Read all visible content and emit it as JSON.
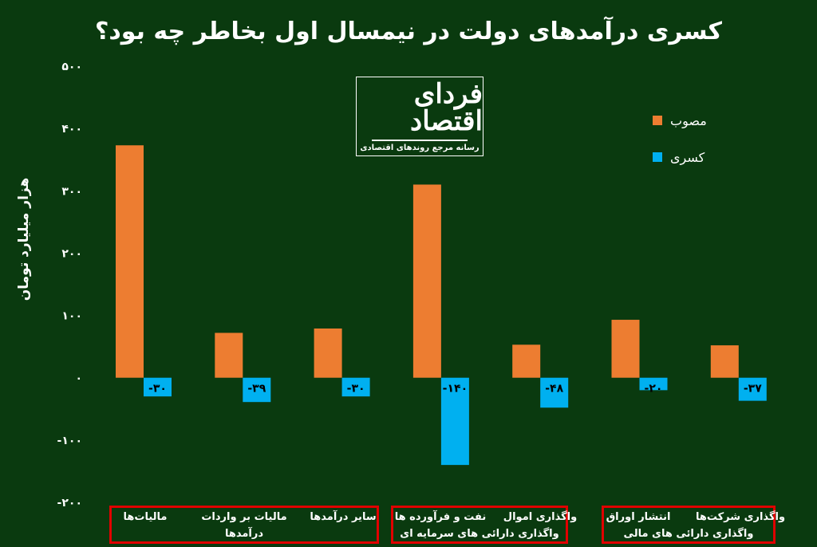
{
  "title": "کسری درآمدهای دولت در نیمسال اول بخاطر چه بود؟",
  "logo": {
    "brand": "فردای اقتصاد",
    "tagline": "رسانه مرجع روندهای اقتصادی"
  },
  "colors": {
    "background": "#0a3a0f",
    "approved": "#ed7d31",
    "deficit": "#00b0f0",
    "group_border": "#e00000"
  },
  "chart_data": {
    "type": "bar",
    "title": "کسری درآمدهای دولت در نیمسال اول بخاطر چه بود؟",
    "ylabel": "هزار میلیارد تومان",
    "ylim": [
      -200,
      500
    ],
    "yticks": [
      500,
      400,
      300,
      200,
      100,
      0,
      -100,
      -200
    ],
    "ytick_labels": [
      "۵۰۰",
      "۴۰۰",
      "۳۰۰",
      "۲۰۰",
      "۱۰۰",
      "۰",
      "-۱۰۰",
      "-۲۰۰"
    ],
    "categories": [
      "مالیات‌ها",
      "مالیات بر واردات",
      "سایر درآمدها",
      "نفت و فرآورده ها",
      "واگذاری اموال",
      "انتشار اوراق",
      "واگذاری شرکت‌ها"
    ],
    "series": [
      {
        "name": "مصوب",
        "values": [
          373,
          72,
          79,
          310,
          53,
          93,
          52
        ]
      },
      {
        "name": "کسری",
        "values": [
          -30,
          -39,
          -30,
          -140,
          -48,
          -20,
          -37
        ],
        "labels": [
          "-۳۰",
          "-۳۹",
          "-۳۰",
          "-۱۴۰",
          "-۴۸",
          "-۲۰",
          "-۳۷"
        ]
      }
    ],
    "groups": [
      {
        "label": "درآمدها",
        "categories": [
          0,
          1,
          2
        ]
      },
      {
        "label": "واگذاری دارائی های سرمایه ای",
        "categories": [
          3,
          4
        ]
      },
      {
        "label": "واگذاری دارائی های مالی",
        "categories": [
          5,
          6
        ]
      }
    ],
    "legend_position": "right",
    "grid": false
  }
}
